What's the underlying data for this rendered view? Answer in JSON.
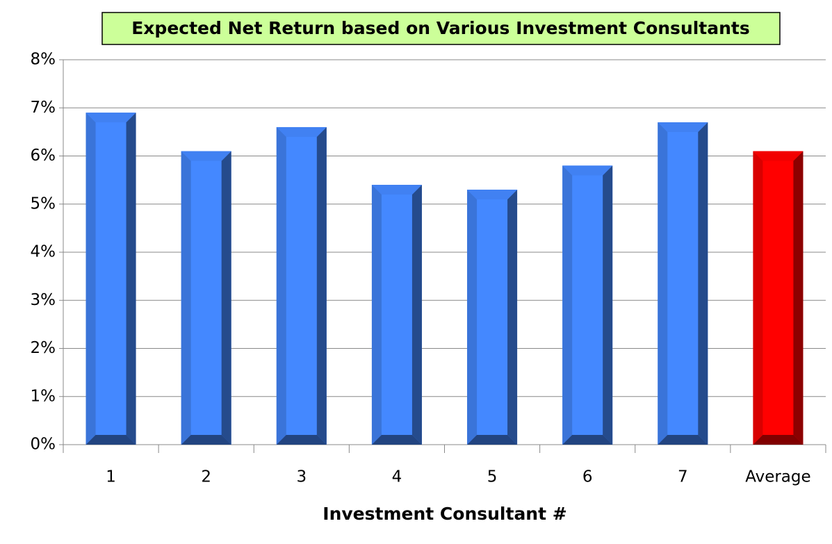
{
  "chart_data": {
    "type": "bar",
    "title": "Expected Net Return based on Various Investment Consultants",
    "x_label": "Investment Consultant #",
    "categories": [
      "1",
      "2",
      "3",
      "4",
      "5",
      "6",
      "7",
      "Average"
    ],
    "values": [
      6.9,
      6.1,
      6.6,
      5.4,
      5.3,
      5.8,
      6.7,
      6.1
    ],
    "colors": [
      "#4488ff",
      "#4488ff",
      "#4488ff",
      "#4488ff",
      "#4488ff",
      "#4488ff",
      "#4488ff",
      "#ff0000"
    ],
    "ylim": [
      0,
      8
    ],
    "yticks": [
      {
        "value": 0,
        "label": "0%"
      },
      {
        "value": 1,
        "label": "1%"
      },
      {
        "value": 2,
        "label": "2%"
      },
      {
        "value": 3,
        "label": "3%"
      },
      {
        "value": 4,
        "label": "4%"
      },
      {
        "value": 5,
        "label": "5%"
      },
      {
        "value": 6,
        "label": "6%"
      },
      {
        "value": 7,
        "label": "7%"
      },
      {
        "value": 8,
        "label": "8%"
      }
    ],
    "grid": true
  }
}
